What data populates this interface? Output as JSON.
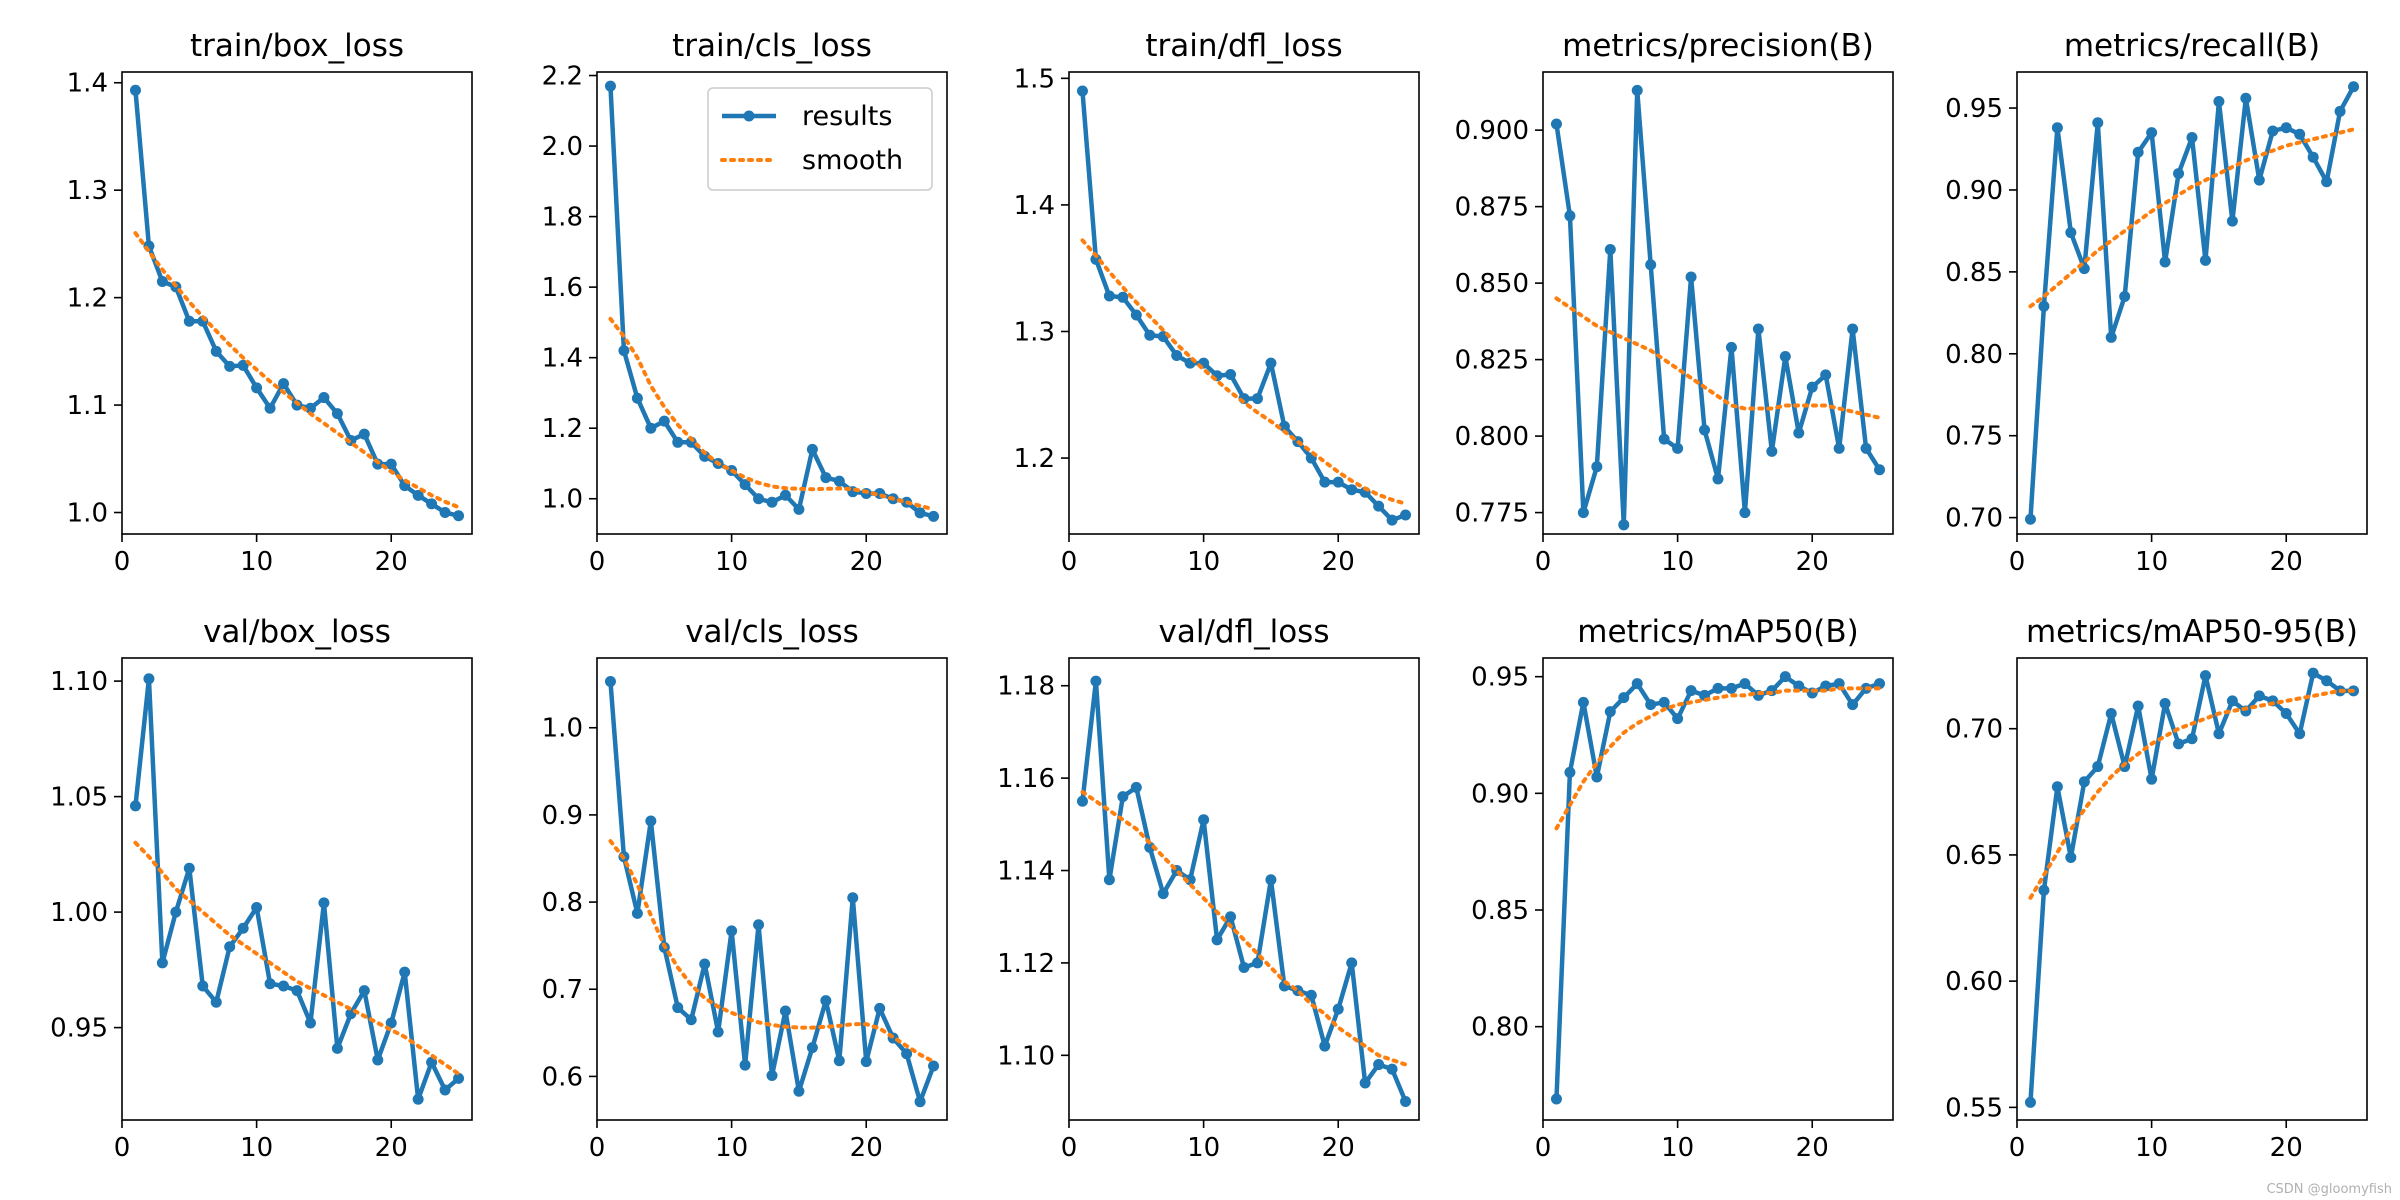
{
  "figure": {
    "watermark": "CSDN @gloomyfish"
  },
  "legend": {
    "results_label": "results",
    "smooth_label": "smooth",
    "location": "upper-right of train/cls_loss panel"
  },
  "colors": {
    "results": "#1f77b4",
    "smooth": "#ff7f0e",
    "axis": "#000000",
    "background": "#ffffff"
  },
  "chart_data": [
    {
      "type": "line",
      "title": "train/box_loss",
      "xlim": [
        0,
        26
      ],
      "ylim": [
        0.98,
        1.41
      ],
      "xticks": [
        0,
        10,
        20
      ],
      "xtick_labels": [
        "0",
        "10",
        "20"
      ],
      "yticks": [
        1.0,
        1.1,
        1.2,
        1.3,
        1.4
      ],
      "ytick_labels": [
        "1.0",
        "1.1",
        "1.2",
        "1.3",
        "1.4"
      ],
      "x": [
        1,
        2,
        3,
        4,
        5,
        6,
        7,
        8,
        9,
        10,
        11,
        12,
        13,
        14,
        15,
        16,
        17,
        18,
        19,
        20,
        21,
        22,
        23,
        24,
        25
      ],
      "series": [
        {
          "name": "results",
          "values": [
            1.393,
            1.248,
            1.215,
            1.21,
            1.178,
            1.178,
            1.15,
            1.136,
            1.137,
            1.116,
            1.097,
            1.12,
            1.1,
            1.097,
            1.107,
            1.092,
            1.067,
            1.073,
            1.045,
            1.045,
            1.025,
            1.016,
            1.008,
            1.0,
            0.997
          ]
        },
        {
          "name": "smooth",
          "values": [
            1.26,
            1.243,
            1.226,
            1.211,
            1.196,
            1.182,
            1.169,
            1.156,
            1.144,
            1.133,
            1.122,
            1.112,
            1.102,
            1.092,
            1.083,
            1.074,
            1.065,
            1.056,
            1.047,
            1.038,
            1.03,
            1.023,
            1.016,
            1.01,
            1.005
          ]
        }
      ]
    },
    {
      "type": "line",
      "title": "train/cls_loss",
      "xlim": [
        0,
        26
      ],
      "ylim": [
        0.9,
        2.21
      ],
      "xticks": [
        0,
        10,
        20
      ],
      "xtick_labels": [
        "0",
        "10",
        "20"
      ],
      "yticks": [
        1.0,
        1.2,
        1.4,
        1.6,
        1.8,
        2.0,
        2.2
      ],
      "ytick_labels": [
        "1.0",
        "1.2",
        "1.4",
        "1.6",
        "1.8",
        "2.0",
        "2.2"
      ],
      "x": [
        1,
        2,
        3,
        4,
        5,
        6,
        7,
        8,
        9,
        10,
        11,
        12,
        13,
        14,
        15,
        16,
        17,
        18,
        19,
        20,
        21,
        22,
        23,
        24,
        25
      ],
      "series": [
        {
          "name": "results",
          "values": [
            2.17,
            1.42,
            1.285,
            1.2,
            1.22,
            1.16,
            1.16,
            1.12,
            1.1,
            1.08,
            1.04,
            1.0,
            0.99,
            1.01,
            0.97,
            1.14,
            1.06,
            1.05,
            1.02,
            1.015,
            1.015,
            1.0,
            0.99,
            0.96,
            0.95
          ]
        },
        {
          "name": "smooth",
          "values": [
            1.51,
            1.46,
            1.4,
            1.32,
            1.26,
            1.21,
            1.17,
            1.13,
            1.1,
            1.08,
            1.06,
            1.045,
            1.035,
            1.03,
            1.028,
            1.027,
            1.028,
            1.029,
            1.027,
            1.02,
            1.01,
            1.0,
            0.99,
            0.98,
            0.97
          ]
        }
      ]
    },
    {
      "type": "line",
      "title": "train/dfl_loss",
      "xlim": [
        0,
        26
      ],
      "ylim": [
        1.14,
        1.505
      ],
      "xticks": [
        0,
        10,
        20
      ],
      "xtick_labels": [
        "0",
        "10",
        "20"
      ],
      "yticks": [
        1.2,
        1.3,
        1.4,
        1.5
      ],
      "ytick_labels": [
        "1.2",
        "1.3",
        "1.4",
        "1.5"
      ],
      "x": [
        1,
        2,
        3,
        4,
        5,
        6,
        7,
        8,
        9,
        10,
        11,
        12,
        13,
        14,
        15,
        16,
        17,
        18,
        19,
        20,
        21,
        22,
        23,
        24,
        25
      ],
      "series": [
        {
          "name": "results",
          "values": [
            1.49,
            1.357,
            1.328,
            1.327,
            1.313,
            1.297,
            1.296,
            1.281,
            1.275,
            1.275,
            1.265,
            1.266,
            1.247,
            1.247,
            1.275,
            1.225,
            1.213,
            1.2,
            1.181,
            1.181,
            1.175,
            1.173,
            1.162,
            1.151,
            1.155
          ]
        },
        {
          "name": "smooth",
          "values": [
            1.372,
            1.36,
            1.347,
            1.335,
            1.323,
            1.312,
            1.301,
            1.29,
            1.28,
            1.27,
            1.261,
            1.252,
            1.244,
            1.236,
            1.229,
            1.221,
            1.213,
            1.205,
            1.197,
            1.189,
            1.182,
            1.176,
            1.171,
            1.167,
            1.164
          ]
        }
      ]
    },
    {
      "type": "line",
      "title": "metrics/precision(B)",
      "xlim": [
        0,
        26
      ],
      "ylim": [
        0.768,
        0.919
      ],
      "xticks": [
        0,
        10,
        20
      ],
      "xtick_labels": [
        "0",
        "10",
        "20"
      ],
      "yticks": [
        0.775,
        0.8,
        0.825,
        0.85,
        0.875,
        0.9
      ],
      "ytick_labels": [
        "0.775",
        "0.800",
        "0.825",
        "0.850",
        "0.875",
        "0.900"
      ],
      "x": [
        1,
        2,
        3,
        4,
        5,
        6,
        7,
        8,
        9,
        10,
        11,
        12,
        13,
        14,
        15,
        16,
        17,
        18,
        19,
        20,
        21,
        22,
        23,
        24,
        25
      ],
      "series": [
        {
          "name": "results",
          "values": [
            0.902,
            0.872,
            0.775,
            0.79,
            0.861,
            0.771,
            0.913,
            0.856,
            0.799,
            0.796,
            0.852,
            0.802,
            0.786,
            0.829,
            0.775,
            0.835,
            0.795,
            0.826,
            0.801,
            0.816,
            0.82,
            0.796,
            0.835,
            0.796,
            0.789
          ]
        },
        {
          "name": "smooth",
          "values": [
            0.845,
            0.842,
            0.839,
            0.836,
            0.834,
            0.832,
            0.83,
            0.828,
            0.825,
            0.822,
            0.819,
            0.816,
            0.813,
            0.81,
            0.809,
            0.809,
            0.809,
            0.81,
            0.81,
            0.81,
            0.81,
            0.809,
            0.808,
            0.807,
            0.806
          ]
        }
      ]
    },
    {
      "type": "line",
      "title": "metrics/recall(B)",
      "xlim": [
        0,
        26
      ],
      "ylim": [
        0.69,
        0.972
      ],
      "xticks": [
        0,
        10,
        20
      ],
      "xtick_labels": [
        "0",
        "10",
        "20"
      ],
      "yticks": [
        0.7,
        0.75,
        0.8,
        0.85,
        0.9,
        0.95
      ],
      "ytick_labels": [
        "0.70",
        "0.75",
        "0.80",
        "0.85",
        "0.90",
        "0.95"
      ],
      "x": [
        1,
        2,
        3,
        4,
        5,
        6,
        7,
        8,
        9,
        10,
        11,
        12,
        13,
        14,
        15,
        16,
        17,
        18,
        19,
        20,
        21,
        22,
        23,
        24,
        25
      ],
      "series": [
        {
          "name": "results",
          "values": [
            0.699,
            0.829,
            0.938,
            0.874,
            0.852,
            0.941,
            0.81,
            0.835,
            0.923,
            0.935,
            0.856,
            0.91,
            0.932,
            0.857,
            0.954,
            0.881,
            0.956,
            0.906,
            0.936,
            0.938,
            0.934,
            0.92,
            0.905,
            0.948,
            0.963
          ]
        },
        {
          "name": "smooth",
          "values": [
            0.829,
            0.835,
            0.842,
            0.849,
            0.856,
            0.863,
            0.869,
            0.875,
            0.881,
            0.887,
            0.892,
            0.897,
            0.902,
            0.906,
            0.91,
            0.914,
            0.918,
            0.921,
            0.924,
            0.927,
            0.929,
            0.931,
            0.933,
            0.935,
            0.937
          ]
        }
      ]
    },
    {
      "type": "line",
      "title": "val/box_loss",
      "xlim": [
        0,
        26
      ],
      "ylim": [
        0.91,
        1.11
      ],
      "xticks": [
        0,
        10,
        20
      ],
      "xtick_labels": [
        "0",
        "10",
        "20"
      ],
      "yticks": [
        0.95,
        1.0,
        1.05,
        1.1
      ],
      "ytick_labels": [
        "0.95",
        "1.00",
        "1.05",
        "1.10"
      ],
      "x": [
        1,
        2,
        3,
        4,
        5,
        6,
        7,
        8,
        9,
        10,
        11,
        12,
        13,
        14,
        15,
        16,
        17,
        18,
        19,
        20,
        21,
        22,
        23,
        24,
        25
      ],
      "series": [
        {
          "name": "results",
          "values": [
            1.046,
            1.101,
            0.978,
            1.0,
            1.019,
            0.968,
            0.961,
            0.985,
            0.993,
            1.002,
            0.969,
            0.968,
            0.966,
            0.952,
            1.004,
            0.941,
            0.956,
            0.966,
            0.936,
            0.952,
            0.974,
            0.919,
            0.935,
            0.923,
            0.928
          ]
        },
        {
          "name": "smooth",
          "values": [
            1.03,
            1.024,
            1.017,
            1.01,
            1.005,
            1.0,
            0.995,
            0.99,
            0.986,
            0.982,
            0.978,
            0.974,
            0.97,
            0.967,
            0.964,
            0.961,
            0.958,
            0.955,
            0.952,
            0.949,
            0.946,
            0.942,
            0.938,
            0.934,
            0.93
          ]
        }
      ]
    },
    {
      "type": "line",
      "title": "val/cls_loss",
      "xlim": [
        0,
        26
      ],
      "ylim": [
        0.55,
        1.08
      ],
      "xticks": [
        0,
        10,
        20
      ],
      "xtick_labels": [
        "0",
        "10",
        "20"
      ],
      "yticks": [
        0.6,
        0.7,
        0.8,
        0.9,
        1.0
      ],
      "ytick_labels": [
        "0.6",
        "0.7",
        "0.8",
        "0.9",
        "1.0"
      ],
      "x": [
        1,
        2,
        3,
        4,
        5,
        6,
        7,
        8,
        9,
        10,
        11,
        12,
        13,
        14,
        15,
        16,
        17,
        18,
        19,
        20,
        21,
        22,
        23,
        24,
        25
      ],
      "series": [
        {
          "name": "results",
          "values": [
            1.053,
            0.852,
            0.787,
            0.893,
            0.748,
            0.679,
            0.665,
            0.729,
            0.651,
            0.767,
            0.613,
            0.774,
            0.601,
            0.675,
            0.583,
            0.633,
            0.687,
            0.618,
            0.805,
            0.617,
            0.678,
            0.644,
            0.626,
            0.571,
            0.612
          ]
        },
        {
          "name": "smooth",
          "values": [
            0.87,
            0.85,
            0.82,
            0.785,
            0.75,
            0.725,
            0.705,
            0.69,
            0.68,
            0.673,
            0.667,
            0.662,
            0.659,
            0.657,
            0.656,
            0.656,
            0.657,
            0.658,
            0.66,
            0.66,
            0.655,
            0.645,
            0.635,
            0.625,
            0.617
          ]
        }
      ]
    },
    {
      "type": "line",
      "title": "val/dfl_loss",
      "xlim": [
        0,
        26
      ],
      "ylim": [
        1.086,
        1.186
      ],
      "xticks": [
        0,
        10,
        20
      ],
      "xtick_labels": [
        "0",
        "10",
        "20"
      ],
      "yticks": [
        1.1,
        1.12,
        1.14,
        1.16,
        1.18
      ],
      "ytick_labels": [
        "1.10",
        "1.12",
        "1.14",
        "1.16",
        "1.18"
      ],
      "x": [
        1,
        2,
        3,
        4,
        5,
        6,
        7,
        8,
        9,
        10,
        11,
        12,
        13,
        14,
        15,
        16,
        17,
        18,
        19,
        20,
        21,
        22,
        23,
        24,
        25
      ],
      "series": [
        {
          "name": "results",
          "values": [
            1.155,
            1.181,
            1.138,
            1.156,
            1.158,
            1.145,
            1.135,
            1.14,
            1.138,
            1.151,
            1.125,
            1.13,
            1.119,
            1.12,
            1.138,
            1.115,
            1.114,
            1.113,
            1.102,
            1.11,
            1.12,
            1.094,
            1.098,
            1.097,
            1.09
          ]
        },
        {
          "name": "smooth",
          "values": [
            1.157,
            1.155,
            1.153,
            1.151,
            1.149,
            1.146,
            1.143,
            1.14,
            1.137,
            1.134,
            1.131,
            1.128,
            1.125,
            1.122,
            1.119,
            1.116,
            1.114,
            1.111,
            1.109,
            1.106,
            1.104,
            1.102,
            1.1,
            1.099,
            1.098
          ]
        }
      ]
    },
    {
      "type": "line",
      "title": "metrics/mAP50(B)",
      "xlim": [
        0,
        26
      ],
      "ylim": [
        0.76,
        0.958
      ],
      "xticks": [
        0,
        10,
        20
      ],
      "xtick_labels": [
        "0",
        "10",
        "20"
      ],
      "yticks": [
        0.8,
        0.85,
        0.9,
        0.95
      ],
      "ytick_labels": [
        "0.80",
        "0.85",
        "0.90",
        "0.95"
      ],
      "x": [
        1,
        2,
        3,
        4,
        5,
        6,
        7,
        8,
        9,
        10,
        11,
        12,
        13,
        14,
        15,
        16,
        17,
        18,
        19,
        20,
        21,
        22,
        23,
        24,
        25
      ],
      "series": [
        {
          "name": "results",
          "values": [
            0.769,
            0.909,
            0.939,
            0.907,
            0.935,
            0.941,
            0.947,
            0.938,
            0.939,
            0.932,
            0.944,
            0.942,
            0.945,
            0.945,
            0.947,
            0.942,
            0.944,
            0.95,
            0.946,
            0.943,
            0.946,
            0.947,
            0.938,
            0.945,
            0.947
          ]
        },
        {
          "name": "smooth",
          "values": [
            0.885,
            0.895,
            0.905,
            0.913,
            0.92,
            0.926,
            0.93,
            0.933,
            0.936,
            0.938,
            0.939,
            0.94,
            0.941,
            0.942,
            0.942,
            0.943,
            0.943,
            0.944,
            0.944,
            0.944,
            0.944,
            0.945,
            0.945,
            0.945,
            0.945
          ]
        }
      ]
    },
    {
      "type": "line",
      "title": "metrics/mAP50-95(B)",
      "xlim": [
        0,
        26
      ],
      "ylim": [
        0.545,
        0.728
      ],
      "xticks": [
        0,
        10,
        20
      ],
      "xtick_labels": [
        "0",
        "10",
        "20"
      ],
      "yticks": [
        0.55,
        0.6,
        0.65,
        0.7
      ],
      "ytick_labels": [
        "0.55",
        "0.60",
        "0.65",
        "0.70"
      ],
      "x": [
        1,
        2,
        3,
        4,
        5,
        6,
        7,
        8,
        9,
        10,
        11,
        12,
        13,
        14,
        15,
        16,
        17,
        18,
        19,
        20,
        21,
        22,
        23,
        24,
        25
      ],
      "series": [
        {
          "name": "results",
          "values": [
            0.552,
            0.636,
            0.677,
            0.649,
            0.679,
            0.685,
            0.706,
            0.685,
            0.709,
            0.68,
            0.71,
            0.694,
            0.696,
            0.721,
            0.698,
            0.711,
            0.707,
            0.713,
            0.711,
            0.706,
            0.698,
            0.722,
            0.719,
            0.715,
            0.715
          ]
        },
        {
          "name": "smooth",
          "values": [
            0.633,
            0.642,
            0.651,
            0.66,
            0.668,
            0.675,
            0.681,
            0.686,
            0.69,
            0.694,
            0.697,
            0.7,
            0.702,
            0.704,
            0.706,
            0.707,
            0.708,
            0.709,
            0.71,
            0.711,
            0.712,
            0.713,
            0.714,
            0.715,
            0.715
          ]
        }
      ]
    }
  ]
}
